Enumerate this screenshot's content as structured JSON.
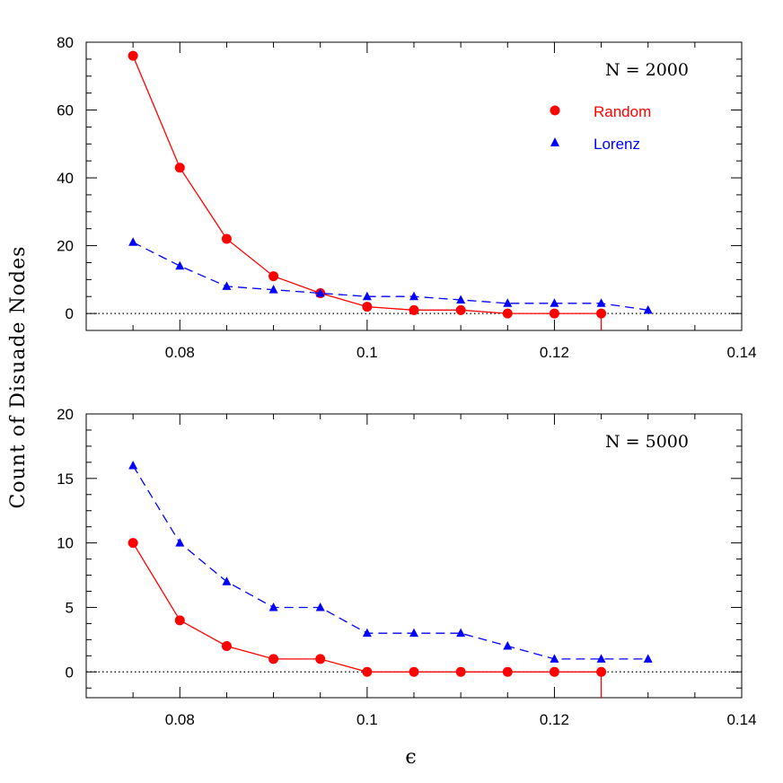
{
  "colors": {
    "random": "#ff0000",
    "lorenz": "#0000ff",
    "axis": "#000000"
  },
  "ylabel": "Count of Disuade Nodes",
  "xlabel": "ϵ",
  "chart_data": [
    {
      "type": "line",
      "panel_label": "N  =  2000",
      "xlim": [
        0.07,
        0.14
      ],
      "ylim": [
        -5,
        80
      ],
      "xticks": [
        0.08,
        0.1,
        0.12,
        0.14
      ],
      "xtick_labels": [
        "0.08",
        "0.1",
        "0.12",
        "0.14"
      ],
      "yticks": [
        0,
        20,
        40,
        60,
        80
      ],
      "ytick_labels": [
        "0",
        "20",
        "40",
        "60",
        "80"
      ],
      "zero_line": true,
      "legend": {
        "placement": "top-right",
        "entries": [
          "Random",
          "Lorenz"
        ]
      },
      "series": [
        {
          "name": "Random",
          "marker": "circle",
          "line": "solid",
          "color": "#ff0000",
          "x": [
            0.075,
            0.08,
            0.085,
            0.09,
            0.095,
            0.1,
            0.105,
            0.11,
            0.115,
            0.12,
            0.125
          ],
          "y": [
            76,
            43,
            22,
            11,
            6,
            2,
            1,
            1,
            0,
            0,
            0
          ],
          "drop_at_x": 0.125
        },
        {
          "name": "Lorenz",
          "marker": "triangle",
          "line": "dashed",
          "color": "#0000ff",
          "x": [
            0.075,
            0.08,
            0.085,
            0.09,
            0.095,
            0.1,
            0.105,
            0.11,
            0.115,
            0.12,
            0.125,
            0.13
          ],
          "y": [
            21,
            14,
            8,
            7,
            6,
            5,
            5,
            4,
            3,
            3,
            3,
            1
          ]
        }
      ]
    },
    {
      "type": "line",
      "panel_label": "N  =  5000",
      "xlim": [
        0.07,
        0.14
      ],
      "ylim": [
        -2,
        20
      ],
      "xticks": [
        0.08,
        0.1,
        0.12,
        0.14
      ],
      "xtick_labels": [
        "0.08",
        "0.1",
        "0.12",
        "0.14"
      ],
      "yticks": [
        0,
        5,
        10,
        15,
        20
      ],
      "ytick_labels": [
        "0",
        "5",
        "10",
        "15",
        "20"
      ],
      "zero_line": true,
      "series": [
        {
          "name": "Random",
          "marker": "circle",
          "line": "solid",
          "color": "#ff0000",
          "x": [
            0.075,
            0.08,
            0.085,
            0.09,
            0.095,
            0.1,
            0.105,
            0.11,
            0.115,
            0.12,
            0.125
          ],
          "y": [
            10,
            4,
            2,
            1,
            1,
            0,
            0,
            0,
            0,
            0,
            0
          ],
          "drop_at_x": 0.125
        },
        {
          "name": "Lorenz",
          "marker": "triangle",
          "line": "dashed",
          "color": "#0000ff",
          "x": [
            0.075,
            0.08,
            0.085,
            0.09,
            0.095,
            0.1,
            0.105,
            0.11,
            0.115,
            0.12,
            0.125,
            0.13
          ],
          "y": [
            16,
            10,
            7,
            5,
            5,
            3,
            3,
            3,
            2,
            1,
            1,
            1
          ]
        }
      ]
    }
  ]
}
